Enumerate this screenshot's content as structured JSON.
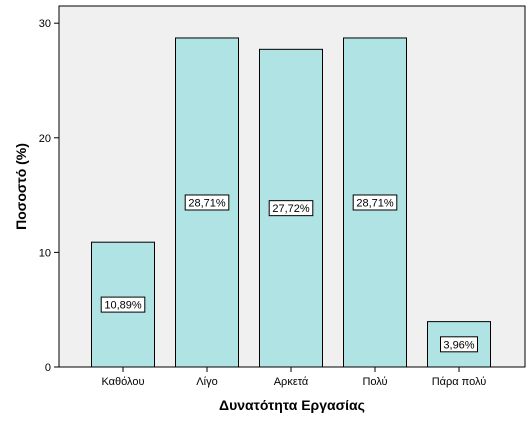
{
  "chart_data": {
    "type": "bar",
    "title": "",
    "xlabel": "Δυνατότητα Εργασίας",
    "ylabel": "Ποσοστό (%)",
    "categories": [
      "Καθόλου",
      "Λίγο",
      "Αρκετά",
      "Πολύ",
      "Πάρα πολύ"
    ],
    "values": [
      10.89,
      28.71,
      27.72,
      28.71,
      3.96
    ],
    "data_labels": [
      "10,89%",
      "28,71%",
      "27,72%",
      "28,71%",
      "3,96%"
    ],
    "ylim": [
      0,
      31.5
    ],
    "yticks": [
      0,
      10,
      20,
      30
    ],
    "ytick_labels": [
      "0",
      "10",
      "20",
      "30"
    ],
    "grid": false,
    "legend": "none",
    "colors": {
      "bar_fill": "#b0e4e4",
      "bar_stroke": "#000000",
      "plot_background": "#f0f0f0",
      "axis": "#000000"
    }
  }
}
